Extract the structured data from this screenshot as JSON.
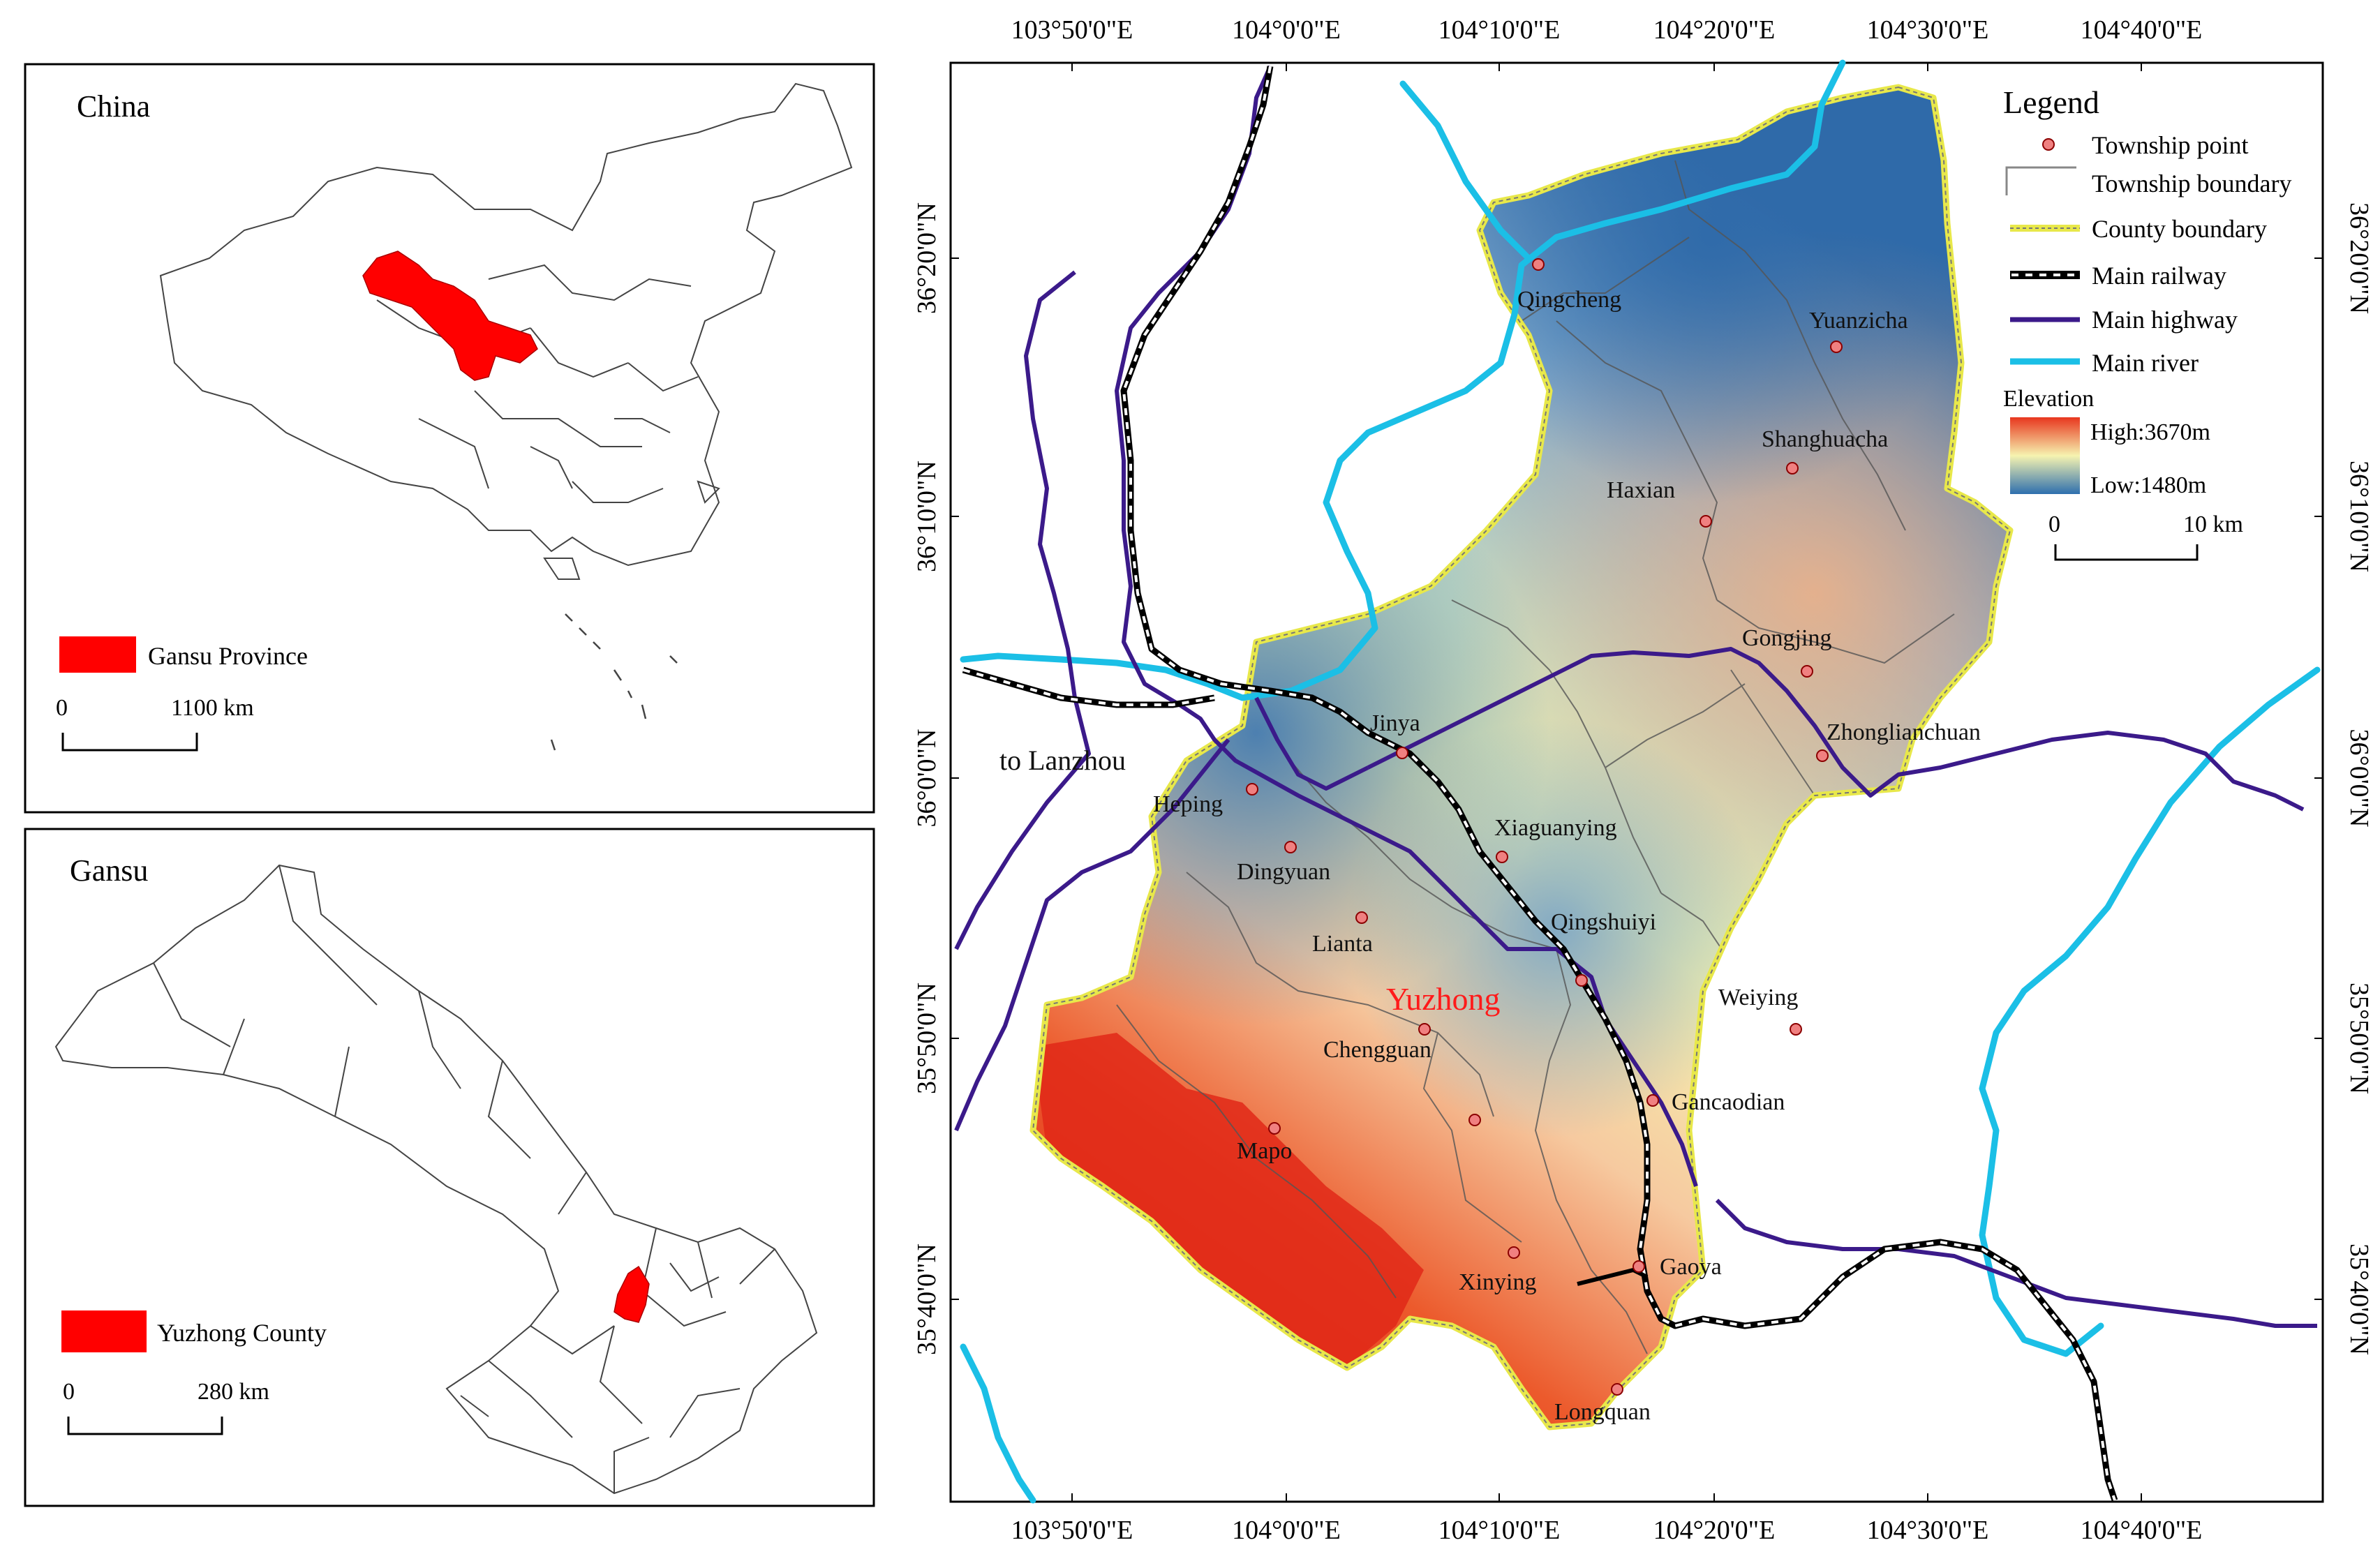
{
  "inset_china": {
    "title": "China",
    "legend_label": "Gansu Province",
    "highlight_color": "#ff0000",
    "scale": {
      "start": "0",
      "end": "1100 km"
    }
  },
  "inset_gansu": {
    "title": "Gansu",
    "legend_label": "Yuzhong County",
    "highlight_color": "#ff0000",
    "scale": {
      "start": "0",
      "end": "280 km"
    }
  },
  "main_map": {
    "county_label": "Yuzhong",
    "to_label": "to Lanzhou",
    "lon_labels": [
      "103°50'0\"E",
      "104°0'0\"E",
      "104°10'0\"E",
      "104°20'0\"E",
      "104°30'0\"E",
      "104°40'0\"E"
    ],
    "lat_labels": [
      "36°20'0\"N",
      "36°10'0\"N",
      "36°0'0\"N",
      "35°50'0\"N",
      "35°40'0\"N"
    ],
    "townships": [
      "Qingcheng",
      "Yuanzicha",
      "Shanghuacha",
      "Haxian",
      "Gongjing",
      "Zhonglianchuan",
      "Jinya",
      "Heping",
      "Dingyuan",
      "Xiaguanying",
      "Lianta",
      "Qingshuiyi",
      "Weiying",
      "Chengguan",
      "Gancaodian",
      "Mapo",
      "Xinying",
      "Gaoya",
      "Longquan"
    ],
    "colors": {
      "high": "#e8361e",
      "mid": "#f6f3b0",
      "low": "#2e6fae",
      "river": "#1bbfe6",
      "highway": "#3b1a8a",
      "county_boundary": "#e8e84a",
      "township_point": "#f08080"
    }
  },
  "legend": {
    "title": "Legend",
    "items": [
      "Township point",
      "Township boundary",
      "County boundary",
      "Main railway",
      "Main highway",
      "Main river"
    ],
    "elevation_title": "Elevation",
    "high": "High:3670m",
    "low": "Low:1480m",
    "scale": {
      "start": "0",
      "end": "10 km"
    }
  }
}
